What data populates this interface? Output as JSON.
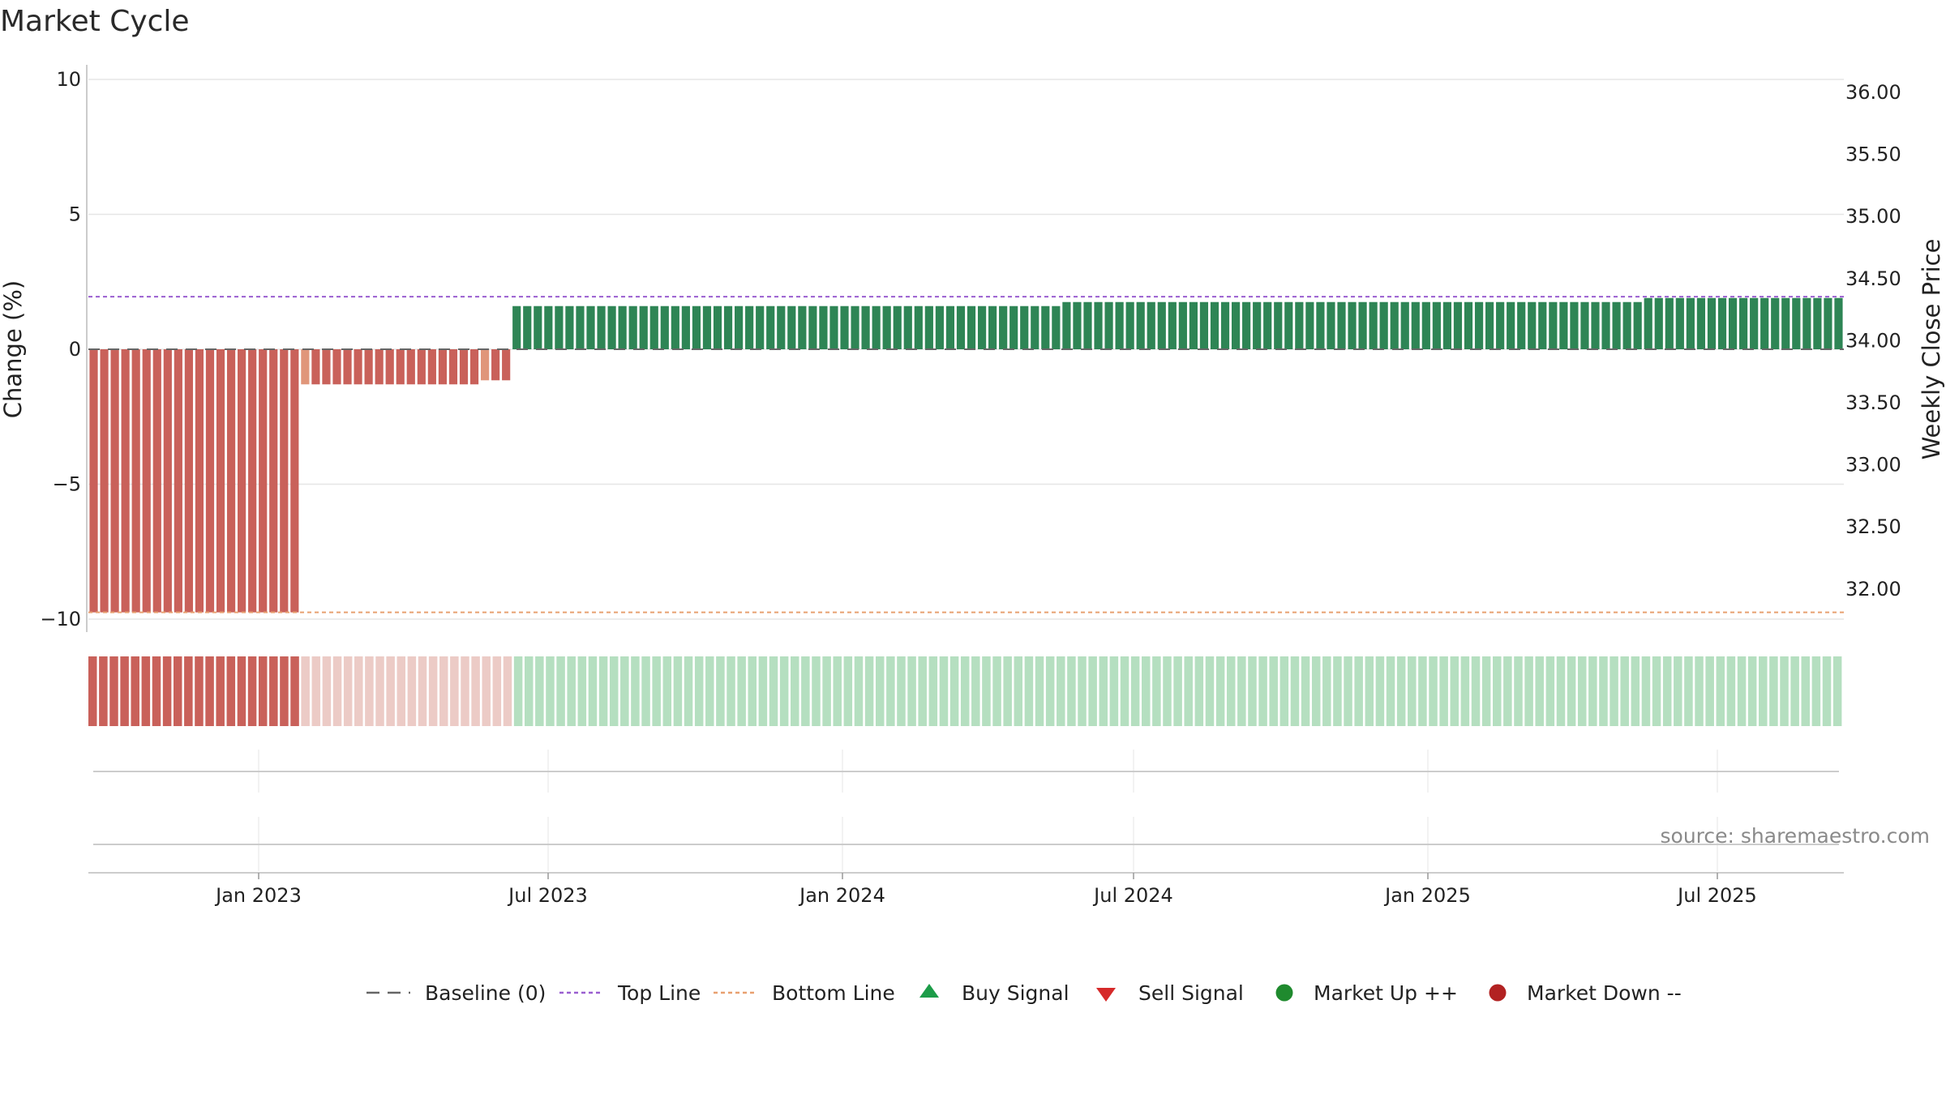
{
  "chart_data": {
    "type": "bar",
    "title": "Market Cycle",
    "ylabel_left": "Change (%)",
    "ylabel_right": "Weekly Close Price",
    "ylim_left": [
      -10.5,
      10.5
    ],
    "ylim_right": [
      31.7,
      36.2
    ],
    "left_ticks": [
      {
        "value": 10,
        "label": "10"
      },
      {
        "value": 5,
        "label": "5"
      },
      {
        "value": 0,
        "label": "0"
      },
      {
        "value": -5,
        "label": "−5"
      },
      {
        "value": -10,
        "label": "−10"
      }
    ],
    "right_ticks": [
      "36.00",
      "35.50",
      "35.00",
      "34.50",
      "34.00",
      "33.50",
      "33.00",
      "32.50",
      "32.00"
    ],
    "x_ticks": [
      "Jan 2023",
      "Jul 2023",
      "Jan 2024",
      "Jul 2024",
      "Jan 2025",
      "Jul 2025"
    ],
    "top_line": 1.95,
    "bottom_line": -9.75,
    "baseline": 0,
    "weekly_change_segments": [
      {
        "weeks": 20,
        "value": -9.75,
        "color": "#c9615a"
      },
      {
        "weeks": 1,
        "value": -1.3,
        "color": "#e0967a"
      },
      {
        "weeks": 16,
        "value": -1.3,
        "color": "#c9615a"
      },
      {
        "weeks": 1,
        "value": -1.15,
        "color": "#e0967a"
      },
      {
        "weeks": 2,
        "value": -1.15,
        "color": "#c9615a"
      },
      {
        "weeks": 52,
        "value": 1.6,
        "color": "#2e8555"
      },
      {
        "weeks": 55,
        "value": 1.75,
        "color": "#2e8555"
      },
      {
        "weeks": 19,
        "value": 1.9,
        "color": "#2e8555"
      }
    ],
    "regime_band_segments": [
      {
        "weeks": 20,
        "color": "#c9615a"
      },
      {
        "weeks": 20,
        "color": "#eccbc6"
      },
      {
        "weeks": 125,
        "color": "#b5dfc0"
      }
    ],
    "legend": [
      {
        "label": "Baseline (0)",
        "symbol": "dash",
        "color": "#666666"
      },
      {
        "label": "Top Line",
        "symbol": "dotted",
        "color": "#9a5fd0"
      },
      {
        "label": "Bottom Line",
        "symbol": "dotted",
        "color": "#e8a070"
      },
      {
        "label": "Buy Signal",
        "symbol": "triangle-up",
        "color": "#1c9c48"
      },
      {
        "label": "Sell Signal",
        "symbol": "triangle-down",
        "color": "#d62a2a"
      },
      {
        "label": "Market Up ++",
        "symbol": "circle",
        "color": "#1f8a2e"
      },
      {
        "label": "Market Down --",
        "symbol": "circle",
        "color": "#b22222"
      }
    ],
    "source": "source: sharemaestro.com"
  }
}
